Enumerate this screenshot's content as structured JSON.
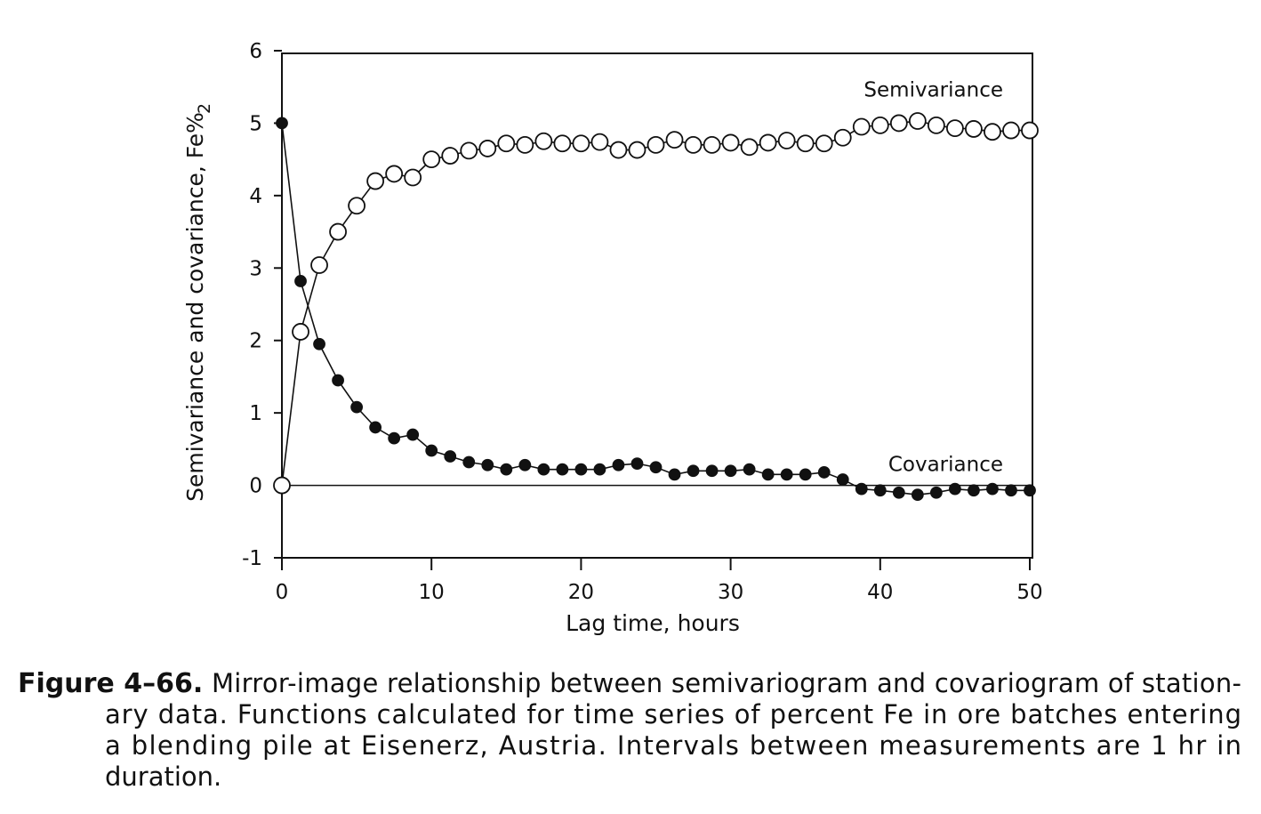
{
  "chart_data": {
    "type": "line",
    "xlabel": "Lag time, hours",
    "ylabel": "Semivariance and covariance, Fe%",
    "ylabel_superscript": "2",
    "xlim": [
      0,
      50
    ],
    "ylim": [
      -1,
      6
    ],
    "xticks": [
      0,
      10,
      20,
      30,
      40,
      50
    ],
    "yticks": [
      -1,
      0,
      1,
      2,
      3,
      4,
      5,
      6
    ],
    "x": [
      0,
      1.25,
      2.5,
      3.75,
      5,
      6.25,
      7.5,
      8.75,
      10,
      11.25,
      12.5,
      13.75,
      15,
      16.25,
      17.5,
      18.75,
      20,
      21.25,
      22.5,
      23.75,
      25,
      26.25,
      27.5,
      28.75,
      30,
      31.25,
      32.5,
      33.75,
      35,
      36.25,
      37.5,
      38.75,
      40,
      41.25,
      42.5,
      43.75,
      45,
      46.25,
      47.5,
      48.75,
      50
    ],
    "series": [
      {
        "name": "Semivariance",
        "color": "#111111",
        "marker": "open",
        "values": [
          0,
          2.12,
          3.04,
          3.5,
          3.86,
          4.2,
          4.3,
          4.25,
          4.5,
          4.55,
          4.62,
          4.65,
          4.72,
          4.7,
          4.75,
          4.72,
          4.72,
          4.74,
          4.63,
          4.63,
          4.7,
          4.77,
          4.7,
          4.7,
          4.73,
          4.67,
          4.73,
          4.76,
          4.72,
          4.72,
          4.8,
          4.95,
          4.97,
          5.0,
          5.03,
          4.97,
          4.93,
          4.92,
          4.88,
          4.9,
          4.9
        ]
      },
      {
        "name": "Covariance",
        "color": "#111111",
        "marker": "filled",
        "values": [
          5.0,
          2.82,
          1.95,
          1.45,
          1.08,
          0.8,
          0.65,
          0.7,
          0.48,
          0.4,
          0.32,
          0.28,
          0.22,
          0.28,
          0.22,
          0.22,
          0.22,
          0.22,
          0.28,
          0.3,
          0.25,
          0.15,
          0.2,
          0.2,
          0.2,
          0.22,
          0.15,
          0.15,
          0.15,
          0.18,
          0.08,
          -0.05,
          -0.07,
          -0.1,
          -0.13,
          -0.1,
          -0.05,
          -0.07,
          -0.05,
          -0.07,
          -0.07
        ]
      }
    ],
    "caption_label": "Figure 4–66.",
    "caption_lines": [
      "Mirror-image relationship between semivariogram and covariogram of station-",
      "ary data.  Functions calculated for time series of percent Fe in ore batches entering",
      "a blending pile at Eisenerz, Austria.  Intervals between measurements are 1 hr in",
      "duration."
    ]
  }
}
